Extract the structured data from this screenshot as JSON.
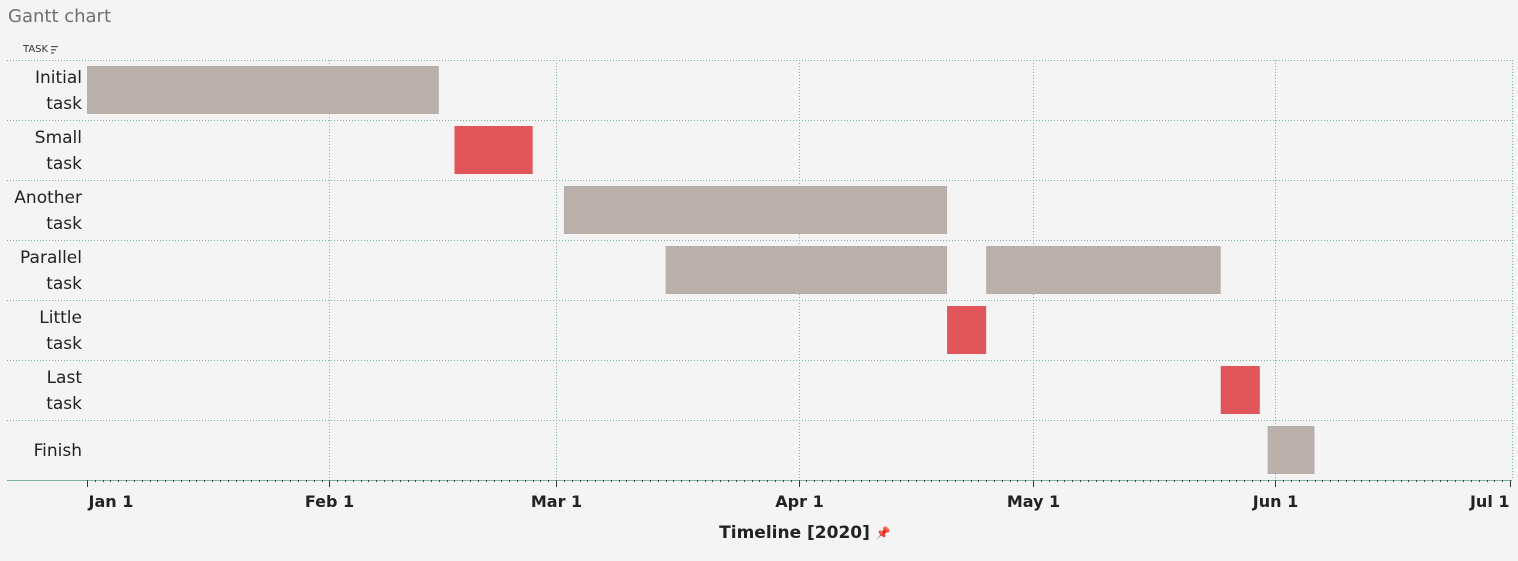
{
  "title": "Gantt chart",
  "task_header": "TASK",
  "axis_title": "Timeline [2020]",
  "icons": {
    "sort": "sort-descending-icon",
    "pin": "pin-icon"
  },
  "colors": {
    "normal": "#bab0ab",
    "critical": "#e15759",
    "grid": "#7fb2a3"
  },
  "chart_data": {
    "type": "gantt",
    "title": "Gantt chart",
    "xlabel": "Timeline [2020]",
    "ylabel": "TASK",
    "xlim": [
      "2020-01-01",
      "2020-07-01"
    ],
    "x_ticks": [
      {
        "date": "2020-01-01",
        "label": "Jan 1"
      },
      {
        "date": "2020-02-01",
        "label": "Feb 1"
      },
      {
        "date": "2020-03-01",
        "label": "Mar 1"
      },
      {
        "date": "2020-04-01",
        "label": "Apr 1"
      },
      {
        "date": "2020-05-01",
        "label": "May 1"
      },
      {
        "date": "2020-06-01",
        "label": "Jun 1"
      },
      {
        "date": "2020-07-01",
        "label": "Jul 1"
      }
    ],
    "grid": true,
    "categories": [
      [
        "Initial",
        "task"
      ],
      [
        "Small",
        "task"
      ],
      [
        "Another",
        "task"
      ],
      [
        "Parallel",
        "task"
      ],
      [
        "Little",
        "task"
      ],
      [
        "Last",
        "task"
      ],
      [
        "Finish"
      ]
    ],
    "tasks": [
      {
        "row": 0,
        "start": "2020-01-01",
        "end": "2020-02-15",
        "critical": false
      },
      {
        "row": 1,
        "start": "2020-02-17",
        "end": "2020-02-27",
        "critical": true
      },
      {
        "row": 2,
        "start": "2020-03-02",
        "end": "2020-04-20",
        "critical": false
      },
      {
        "row": 3,
        "start": "2020-03-15",
        "end": "2020-04-20",
        "critical": false
      },
      {
        "row": 3,
        "start": "2020-04-25",
        "end": "2020-05-25",
        "critical": false
      },
      {
        "row": 4,
        "start": "2020-04-20",
        "end": "2020-04-25",
        "critical": true
      },
      {
        "row": 5,
        "start": "2020-05-25",
        "end": "2020-05-30",
        "critical": true
      },
      {
        "row": 6,
        "start": "2020-05-31",
        "end": "2020-06-06",
        "critical": false
      }
    ]
  }
}
